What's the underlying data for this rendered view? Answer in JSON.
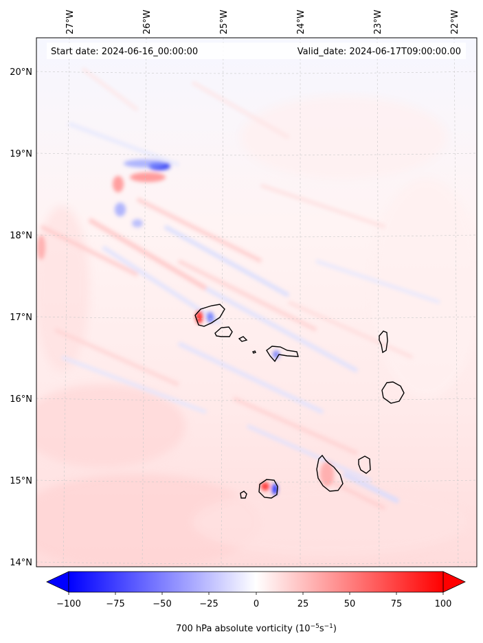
{
  "map": {
    "start_date": "Start date: 2024-06-16_00:00:00",
    "valid_date": "Valid_date: 2024-06-17T09:00:00.00",
    "lon_labels": [
      "27°W",
      "26°W",
      "25°W",
      "24°W",
      "23°W",
      "22°W"
    ],
    "lat_labels": [
      "20°N",
      "19°N",
      "18°N",
      "17°N",
      "16°N",
      "15°N",
      "14°N"
    ],
    "gridlines": true
  },
  "colorbar": {
    "ticks": [
      "−100",
      "−75",
      "−50",
      "−25",
      "0",
      "25",
      "50",
      "75",
      "100"
    ],
    "label_main": "700 hPa absolute vorticity (10",
    "label_exp1": "−5",
    "label_mid": "s",
    "label_exp2": "−1",
    "label_end": ")",
    "min_color": "#0000ff",
    "mid_color": "#ffffff",
    "max_color": "#ff0000"
  }
}
